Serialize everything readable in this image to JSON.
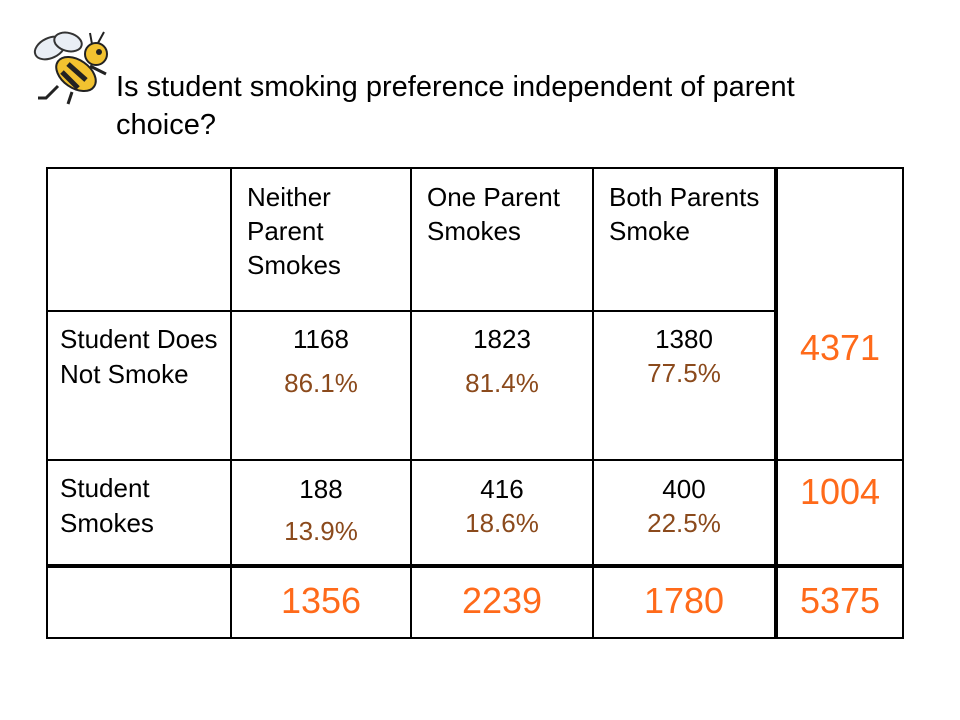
{
  "slide": {
    "question": "Is student smoking preference independent of parent choice?"
  },
  "table": {
    "columns": [
      "Neither Parent Smokes",
      "One Parent Smokes",
      "Both Parents Smoke"
    ],
    "rows": [
      {
        "label": "Student Does Not Smoke",
        "cells": [
          {
            "count": "1168",
            "percent": "86.1%"
          },
          {
            "count": "1823",
            "percent": "81.4%"
          },
          {
            "count": "1380",
            "percent": "77.5%"
          }
        ],
        "total": "4371"
      },
      {
        "label": "Student Smokes",
        "cells": [
          {
            "count": "188",
            "percent": "13.9%"
          },
          {
            "count": "416",
            "percent": "18.6%"
          },
          {
            "count": "400",
            "percent": "22.5%"
          }
        ],
        "total": "1004"
      }
    ],
    "column_totals": [
      "1356",
      "2239",
      "1780"
    ],
    "grand_total": "5375"
  },
  "colors": {
    "percent_text": "#8b4a1c",
    "total_text": "#ff6a1a",
    "grid": "#000000"
  },
  "icons": {
    "logo": "hornet-mascot-icon"
  }
}
